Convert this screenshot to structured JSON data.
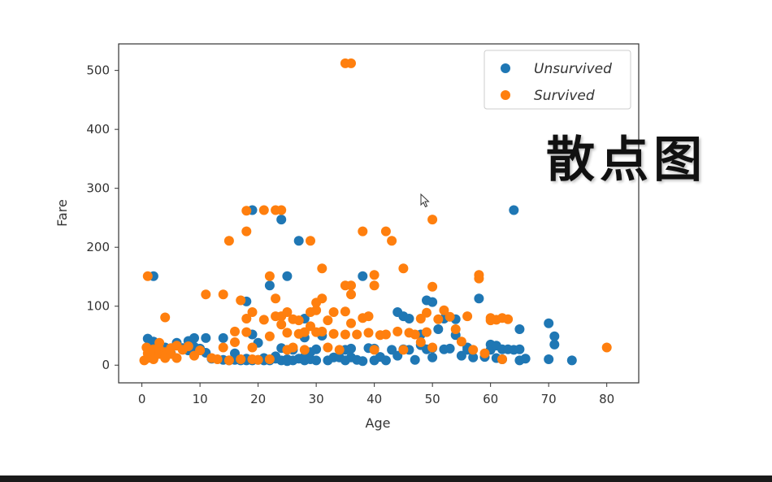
{
  "caption": "散点图",
  "icons": {
    "cursor": "mouse-pointer-icon"
  },
  "chart_data": {
    "type": "scatter",
    "title": "",
    "xlabel": "Age",
    "ylabel": "Fare",
    "xlim": [
      -4.0,
      85.5
    ],
    "ylim": [
      -30,
      545
    ],
    "xticks": [
      0,
      10,
      20,
      30,
      40,
      50,
      60,
      70,
      80
    ],
    "yticks": [
      0,
      100,
      200,
      300,
      400,
      500
    ],
    "legend": "top-right",
    "grid": false,
    "series": [
      {
        "name": "Unsurvived",
        "color": "#1f77b4",
        "points": [
          [
            1,
            45
          ],
          [
            1.5,
            36
          ],
          [
            2,
            151
          ],
          [
            2,
            40
          ],
          [
            2,
            28
          ],
          [
            2,
            22
          ],
          [
            2,
            12
          ],
          [
            3,
            25
          ],
          [
            3,
            30
          ],
          [
            4,
            16
          ],
          [
            4,
            30
          ],
          [
            5,
            20
          ],
          [
            6,
            38
          ],
          [
            7,
            29
          ],
          [
            8,
            41
          ],
          [
            8,
            25
          ],
          [
            9,
            46
          ],
          [
            9,
            31
          ],
          [
            10,
            28
          ],
          [
            11,
            46
          ],
          [
            11,
            21
          ],
          [
            12,
            11
          ],
          [
            14,
            46
          ],
          [
            14,
            9
          ],
          [
            15,
            8
          ],
          [
            16,
            20
          ],
          [
            16,
            9
          ],
          [
            17,
            8
          ],
          [
            18,
            108
          ],
          [
            18,
            11
          ],
          [
            18,
            8
          ],
          [
            19,
            263
          ],
          [
            19,
            52
          ],
          [
            19,
            8
          ],
          [
            20,
            38
          ],
          [
            20,
            9
          ],
          [
            21,
            12
          ],
          [
            21,
            8
          ],
          [
            22,
            135
          ],
          [
            22,
            8
          ],
          [
            22,
            9
          ],
          [
            23,
            11
          ],
          [
            23,
            15
          ],
          [
            24,
            247
          ],
          [
            24,
            29
          ],
          [
            24,
            8
          ],
          [
            25,
            151
          ],
          [
            25,
            10
          ],
          [
            25,
            7
          ],
          [
            26,
            8
          ],
          [
            26,
            26
          ],
          [
            27,
            211
          ],
          [
            27,
            11
          ],
          [
            28,
            8
          ],
          [
            28,
            79
          ],
          [
            28,
            14
          ],
          [
            28,
            47
          ],
          [
            29,
            10
          ],
          [
            29,
            22
          ],
          [
            30,
            8
          ],
          [
            30,
            27
          ],
          [
            31,
            50
          ],
          [
            32,
            8
          ],
          [
            33,
            13
          ],
          [
            34,
            13
          ],
          [
            35,
            8
          ],
          [
            35,
            26
          ],
          [
            36,
            13
          ],
          [
            36,
            28
          ],
          [
            37,
            9
          ],
          [
            38,
            151
          ],
          [
            38,
            7
          ],
          [
            39,
            29
          ],
          [
            40,
            28
          ],
          [
            40,
            8
          ],
          [
            41,
            14
          ],
          [
            42,
            8
          ],
          [
            43,
            26
          ],
          [
            44,
            90
          ],
          [
            44,
            16
          ],
          [
            45,
            83
          ],
          [
            45,
            27
          ],
          [
            46,
            79
          ],
          [
            46,
            26
          ],
          [
            47,
            9
          ],
          [
            48,
            52
          ],
          [
            48,
            34
          ],
          [
            49,
            27
          ],
          [
            49,
            110
          ],
          [
            50,
            107
          ],
          [
            50,
            13
          ],
          [
            50,
            29
          ],
          [
            51,
            61
          ],
          [
            52,
            27
          ],
          [
            52,
            79
          ],
          [
            53,
            28
          ],
          [
            54,
            51
          ],
          [
            54,
            78
          ],
          [
            55,
            16
          ],
          [
            56,
            26
          ],
          [
            56,
            30
          ],
          [
            57,
            13
          ],
          [
            58,
            113
          ],
          [
            59,
            14
          ],
          [
            60,
            26
          ],
          [
            60,
            35
          ],
          [
            61,
            33
          ],
          [
            61,
            12
          ],
          [
            62,
            27
          ],
          [
            62,
            10
          ],
          [
            63,
            27
          ],
          [
            64,
            263
          ],
          [
            64,
            26
          ],
          [
            65,
            61
          ],
          [
            65,
            27
          ],
          [
            65,
            8
          ],
          [
            66,
            11
          ],
          [
            70,
            71
          ],
          [
            70,
            10
          ],
          [
            71,
            49
          ],
          [
            71,
            35
          ],
          [
            74,
            8
          ]
        ]
      },
      {
        "name": "Survived",
        "color": "#ff7f0e",
        "points": [
          [
            0.4,
            8
          ],
          [
            0.8,
            30
          ],
          [
            1,
            151
          ],
          [
            1,
            12
          ],
          [
            1,
            20
          ],
          [
            2,
            15
          ],
          [
            2,
            27
          ],
          [
            2,
            10
          ],
          [
            3,
            19
          ],
          [
            3,
            27
          ],
          [
            3,
            38
          ],
          [
            4,
            81
          ],
          [
            4,
            22
          ],
          [
            4,
            16
          ],
          [
            4,
            12
          ],
          [
            5,
            29
          ],
          [
            5,
            19
          ],
          [
            6,
            33
          ],
          [
            6,
            12
          ],
          [
            7,
            26
          ],
          [
            8,
            32
          ],
          [
            9,
            16
          ],
          [
            10,
            25
          ],
          [
            11,
            120
          ],
          [
            12,
            12
          ],
          [
            13,
            10
          ],
          [
            14,
            120
          ],
          [
            14,
            30
          ],
          [
            15,
            211
          ],
          [
            15,
            8
          ],
          [
            16,
            39
          ],
          [
            16,
            57
          ],
          [
            17,
            110
          ],
          [
            17,
            10
          ],
          [
            18,
            262
          ],
          [
            18,
            227
          ],
          [
            18,
            79
          ],
          [
            18,
            56
          ],
          [
            19,
            90
          ],
          [
            19,
            30
          ],
          [
            19,
            10
          ],
          [
            20,
            9
          ],
          [
            21,
            263
          ],
          [
            21,
            77
          ],
          [
            22,
            151
          ],
          [
            22,
            49
          ],
          [
            22,
            10
          ],
          [
            23,
            263
          ],
          [
            23,
            83
          ],
          [
            23,
            113
          ],
          [
            24,
            263
          ],
          [
            24,
            69
          ],
          [
            24,
            83
          ],
          [
            25,
            90
          ],
          [
            25,
            55
          ],
          [
            25,
            26
          ],
          [
            26,
            78
          ],
          [
            26,
            30
          ],
          [
            27,
            53
          ],
          [
            27,
            76
          ],
          [
            28,
            56
          ],
          [
            28,
            26
          ],
          [
            29,
            211
          ],
          [
            29,
            90
          ],
          [
            29,
            66
          ],
          [
            30,
            93
          ],
          [
            30,
            106
          ],
          [
            30,
            56
          ],
          [
            31,
            164
          ],
          [
            31,
            113
          ],
          [
            31,
            57
          ],
          [
            32,
            76
          ],
          [
            32,
            30
          ],
          [
            33,
            90
          ],
          [
            33,
            53
          ],
          [
            34,
            26
          ],
          [
            35,
            512
          ],
          [
            35,
            135
          ],
          [
            35,
            91
          ],
          [
            35,
            52
          ],
          [
            36,
            512
          ],
          [
            36,
            135
          ],
          [
            36,
            120
          ],
          [
            36,
            71
          ],
          [
            37,
            52
          ],
          [
            38,
            227
          ],
          [
            38,
            80
          ],
          [
            39,
            83
          ],
          [
            39,
            55
          ],
          [
            40,
            153
          ],
          [
            40,
            135
          ],
          [
            40,
            26
          ],
          [
            41,
            51
          ],
          [
            42,
            227
          ],
          [
            42,
            52
          ],
          [
            43,
            211
          ],
          [
            44,
            57
          ],
          [
            45,
            164
          ],
          [
            45,
            26
          ],
          [
            46,
            55
          ],
          [
            47,
            52
          ],
          [
            48,
            79
          ],
          [
            48,
            39
          ],
          [
            49,
            89
          ],
          [
            49,
            56
          ],
          [
            50,
            247
          ],
          [
            50,
            133
          ],
          [
            50,
            30
          ],
          [
            51,
            78
          ],
          [
            52,
            93
          ],
          [
            53,
            82
          ],
          [
            54,
            61
          ],
          [
            55,
            40
          ],
          [
            56,
            83
          ],
          [
            57,
            26
          ],
          [
            58,
            153
          ],
          [
            58,
            147
          ],
          [
            59,
            20
          ],
          [
            60,
            76
          ],
          [
            60,
            80
          ],
          [
            61,
            77
          ],
          [
            62,
            80
          ],
          [
            62,
            10
          ],
          [
            63,
            78
          ],
          [
            80,
            30
          ]
        ]
      }
    ]
  }
}
